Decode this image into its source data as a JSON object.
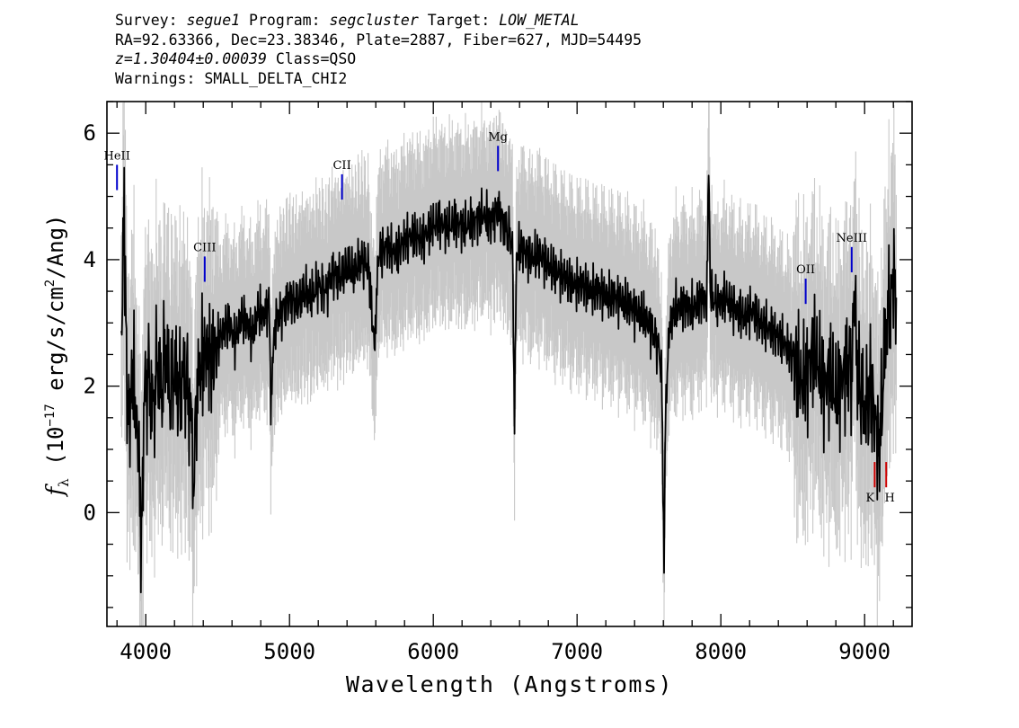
{
  "header": {
    "survey_label": "Survey:",
    "survey": "segue1",
    "program_label": "Program:",
    "program": "segcluster",
    "target_label": "Target:",
    "target": "LOW_METAL",
    "line2": "RA=92.63366, Dec=23.38346, Plate=2887, Fiber=627, MJD=54495",
    "redshift": "z=1.30404±0.00039",
    "class": "Class=QSO",
    "warnings": "Warnings: SMALL_DELTA_CHI2"
  },
  "chart_data": {
    "type": "line",
    "title": "",
    "xlabel": "Wavelength (Angstroms)",
    "ylabel_parts": [
      "f",
      "λ",
      " (10",
      "−17",
      " erg/s/cm",
      "2",
      "/Ang)"
    ],
    "xlim": [
      3730,
      9330
    ],
    "ylim": [
      -1.8,
      6.5
    ],
    "xticks": [
      4000,
      5000,
      6000,
      7000,
      8000,
      9000
    ],
    "yticks": [
      0,
      2,
      4,
      6
    ],
    "x_minor_step": 200,
    "y_minor_step": 0.5,
    "grid": false,
    "colors": {
      "spectrum": "#000000",
      "error_band": "#c8c8c8",
      "emission_marker": "#0000cc",
      "absorption_marker": "#cc0000"
    },
    "series": [
      {
        "points": [
          [
            3830,
            2.8
          ],
          [
            3850,
            4.8
          ],
          [
            3870,
            1.8
          ],
          [
            3890,
            1.5
          ],
          [
            3910,
            2.3
          ],
          [
            3930,
            1.6
          ],
          [
            3950,
            1.0
          ],
          [
            3970,
            -0.6
          ],
          [
            3990,
            1.9
          ],
          [
            4020,
            2.2
          ],
          [
            4050,
            1.6
          ],
          [
            4080,
            2.4
          ],
          [
            4110,
            1.9
          ],
          [
            4140,
            2.6
          ],
          [
            4170,
            1.8
          ],
          [
            4200,
            2.3
          ],
          [
            4230,
            1.9
          ],
          [
            4260,
            2.2
          ],
          [
            4290,
            2.0
          ],
          [
            4320,
            1.4
          ],
          [
            4330,
            0.2
          ],
          [
            4350,
            1.8
          ],
          [
            4380,
            2.3
          ],
          [
            4420,
            2.6
          ],
          [
            4460,
            2.4
          ],
          [
            4500,
            2.7
          ],
          [
            4540,
            2.9
          ],
          [
            4580,
            3.0
          ],
          [
            4620,
            2.7
          ],
          [
            4660,
            3.1
          ],
          [
            4700,
            3.0
          ],
          [
            4740,
            2.8
          ],
          [
            4780,
            3.2
          ],
          [
            4820,
            3.1
          ],
          [
            4860,
            3.3
          ],
          [
            4870,
            1.8
          ],
          [
            4900,
            3.0
          ],
          [
            4950,
            3.2
          ],
          [
            5000,
            3.4
          ],
          [
            5050,
            3.3
          ],
          [
            5100,
            3.5
          ],
          [
            5150,
            3.4
          ],
          [
            5200,
            3.6
          ],
          [
            5250,
            3.5
          ],
          [
            5300,
            3.8
          ],
          [
            5350,
            3.7
          ],
          [
            5400,
            3.9
          ],
          [
            5450,
            3.8
          ],
          [
            5500,
            4.0
          ],
          [
            5550,
            3.9
          ],
          [
            5590,
            2.6
          ],
          [
            5620,
            4.1
          ],
          [
            5680,
            4.2
          ],
          [
            5740,
            4.1
          ],
          [
            5800,
            4.3
          ],
          [
            5860,
            4.4
          ],
          [
            5920,
            4.3
          ],
          [
            5980,
            4.5
          ],
          [
            6040,
            4.6
          ],
          [
            6100,
            4.5
          ],
          [
            6160,
            4.6
          ],
          [
            6220,
            4.5
          ],
          [
            6280,
            4.6
          ],
          [
            6340,
            4.7
          ],
          [
            6400,
            4.6
          ],
          [
            6450,
            4.8
          ],
          [
            6500,
            4.5
          ],
          [
            6530,
            4.4
          ],
          [
            6550,
            4.2
          ],
          [
            6565,
            1.6
          ],
          [
            6580,
            4.1
          ],
          [
            6620,
            4.2
          ],
          [
            6680,
            4.0
          ],
          [
            6740,
            4.1
          ],
          [
            6800,
            3.9
          ],
          [
            6860,
            3.8
          ],
          [
            6920,
            3.7
          ],
          [
            6980,
            3.6
          ],
          [
            7040,
            3.6
          ],
          [
            7100,
            3.5
          ],
          [
            7160,
            3.5
          ],
          [
            7220,
            3.4
          ],
          [
            7280,
            3.4
          ],
          [
            7340,
            3.3
          ],
          [
            7400,
            3.2
          ],
          [
            7460,
            3.1
          ],
          [
            7520,
            2.9
          ],
          [
            7570,
            2.6
          ],
          [
            7590,
            2.0
          ],
          [
            7605,
            -0.9
          ],
          [
            7615,
            1.5
          ],
          [
            7640,
            2.9
          ],
          [
            7680,
            3.2
          ],
          [
            7740,
            3.3
          ],
          [
            7800,
            3.2
          ],
          [
            7860,
            3.4
          ],
          [
            7900,
            3.3
          ],
          [
            7915,
            5.3
          ],
          [
            7930,
            3.4
          ],
          [
            7980,
            3.3
          ],
          [
            8040,
            3.4
          ],
          [
            8100,
            3.2
          ],
          [
            8160,
            3.1
          ],
          [
            8220,
            3.2
          ],
          [
            8280,
            3.0
          ],
          [
            8340,
            2.9
          ],
          [
            8400,
            2.8
          ],
          [
            8460,
            2.6
          ],
          [
            8520,
            2.4
          ],
          [
            8560,
            2.0
          ],
          [
            8600,
            2.2
          ],
          [
            8640,
            2.6
          ],
          [
            8680,
            2.3
          ],
          [
            8720,
            2.0
          ],
          [
            8760,
            2.2
          ],
          [
            8800,
            1.8
          ],
          [
            8840,
            2.1
          ],
          [
            8880,
            2.4
          ],
          [
            8910,
            2.2
          ],
          [
            8930,
            3.6
          ],
          [
            8950,
            2.2
          ],
          [
            8980,
            1.8
          ],
          [
            9010,
            1.6
          ],
          [
            9040,
            2.0
          ],
          [
            9060,
            1.7
          ],
          [
            9080,
            1.4
          ],
          [
            9100,
            0.9
          ],
          [
            9120,
            1.8
          ],
          [
            9150,
            2.9
          ],
          [
            9180,
            3.3
          ],
          [
            9200,
            3.8
          ],
          [
            9220,
            3.4
          ]
        ],
        "error_band_halfwidth": 0.6
      }
    ],
    "line_markers": [
      {
        "label": "HeII",
        "x": 3800,
        "y_top": 5.5,
        "y_bottom": 5.1,
        "color_key": "emission"
      },
      {
        "label": "CIII",
        "x": 4410,
        "y_top": 4.05,
        "y_bottom": 3.65,
        "color_key": "emission"
      },
      {
        "label": "CII",
        "x": 5365,
        "y_top": 5.35,
        "y_bottom": 4.95,
        "color_key": "emission"
      },
      {
        "label": "Mg",
        "x": 6450,
        "y_top": 5.8,
        "y_bottom": 5.4,
        "color_key": "emission"
      },
      {
        "label": "OII",
        "x": 8590,
        "y_top": 3.7,
        "y_bottom": 3.3,
        "color_key": "emission"
      },
      {
        "label": "NeIII",
        "x": 8910,
        "y_top": 4.2,
        "y_bottom": 3.8,
        "color_key": "emission"
      },
      {
        "label": "K",
        "x": 9070,
        "y_top": 0.8,
        "y_bottom": 0.4,
        "color_key": "absorption"
      },
      {
        "label": "H",
        "x": 9150,
        "y_top": 0.8,
        "y_bottom": 0.4,
        "color_key": "absorption"
      }
    ]
  }
}
